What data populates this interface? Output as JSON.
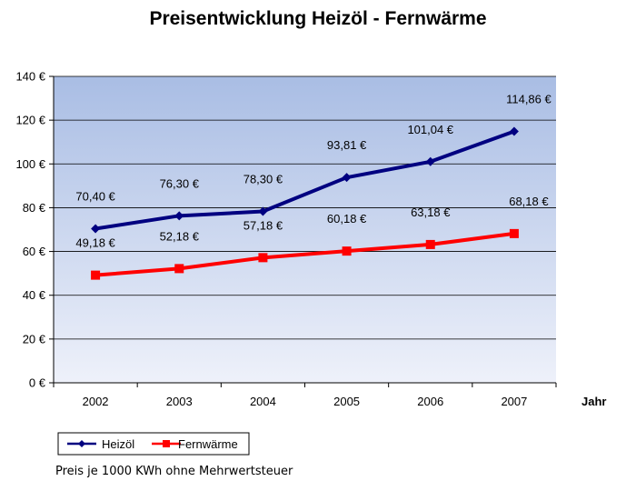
{
  "chart_data": {
    "type": "line",
    "title": "Preisentwicklung Heizöl  -  Fernwärme",
    "xlabel": "Jahr",
    "ylabel": "",
    "categories": [
      "2002",
      "2003",
      "2004",
      "2005",
      "2006",
      "2007"
    ],
    "ylim": [
      0,
      140
    ],
    "yticks": [
      0,
      20,
      40,
      60,
      80,
      100,
      120,
      140
    ],
    "ytick_labels": [
      "0 €",
      "20 €",
      "40 €",
      "60 €",
      "80 €",
      "100 €",
      "120 €",
      "140 €"
    ],
    "grid": true,
    "legend_position": "bottom-left",
    "series": [
      {
        "name": "Heizöl",
        "values": [
          70.4,
          76.3,
          78.3,
          93.81,
          101.04,
          114.86
        ],
        "labels": [
          "70,40 €",
          "76,30 €",
          "78,30 €",
          "93,81 €",
          "101,04 €",
          "114,86 €"
        ],
        "color": "#000080",
        "marker": "diamond"
      },
      {
        "name": "Fernwärme",
        "values": [
          49.18,
          52.18,
          57.18,
          60.18,
          63.18,
          68.18
        ],
        "labels": [
          "49,18 €",
          "52,18 €",
          "57,18 €",
          "60,18 €",
          "63,18 €",
          "68,18 €"
        ],
        "color": "#ff0000",
        "marker": "square"
      }
    ],
    "background_gradient": [
      "#a9bde4",
      "#eef1fa"
    ]
  },
  "footnote": "Preis je 1000 KWh ohne Mehrwertsteuer"
}
